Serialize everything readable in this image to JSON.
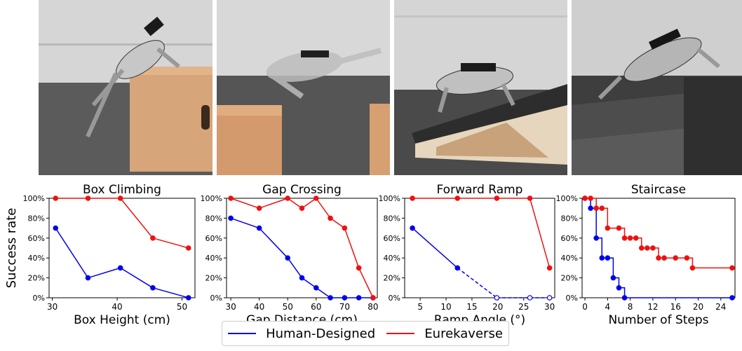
{
  "colors": {
    "human": "#0000ee",
    "eureka": "#ee1111"
  },
  "photos": [
    {
      "name": "box-climbing-photo",
      "scene": "quadruped robot climbing onto a wooden box"
    },
    {
      "name": "gap-crossing-photo",
      "scene": "quadruped robot leaping across a gap between two wooden boxes"
    },
    {
      "name": "forward-ramp-photo",
      "scene": "quadruped robot walking up an inclined wooden ramp"
    },
    {
      "name": "staircase-photo",
      "scene": "quadruped robot climbing a carpeted staircase"
    }
  ],
  "legend": {
    "human": "Human-Designed",
    "eureka": "Eurekaverse"
  },
  "ylabel": "Success rate",
  "chart_data": [
    {
      "type": "line",
      "title": "Box Climbing",
      "xlabel": "Box Height (cm)",
      "xlim": [
        29.5,
        52
      ],
      "ylim": [
        0,
        100
      ],
      "xticks": [
        30,
        40,
        50
      ],
      "yticks": [
        0,
        20,
        40,
        60,
        80,
        100
      ],
      "ytick_labels": [
        "0%",
        "20%",
        "40%",
        "60%",
        "80%",
        "100%"
      ],
      "series": [
        {
          "name": "Human-Designed",
          "key": "human",
          "x": [
            30.5,
            35.5,
            40.5,
            45.5,
            51
          ],
          "y": [
            70,
            20,
            30,
            10,
            0
          ]
        },
        {
          "name": "Eurekaverse",
          "key": "eureka",
          "x": [
            30.5,
            35.5,
            40.5,
            45.5,
            51
          ],
          "y": [
            100,
            100,
            100,
            60,
            50
          ]
        }
      ]
    },
    {
      "type": "line",
      "title": "Gap Crossing",
      "xlabel": "Gap Distance (cm)",
      "xlim": [
        28.5,
        81.5
      ],
      "ylim": [
        0,
        100
      ],
      "xticks": [
        30,
        40,
        50,
        60,
        70,
        80
      ],
      "yticks": [
        0,
        20,
        40,
        60,
        80,
        100
      ],
      "ytick_labels": [
        "0%",
        "20%",
        "40%",
        "60%",
        "80%",
        "100%"
      ],
      "series": [
        {
          "name": "Human-Designed",
          "key": "human",
          "x": [
            30,
            40,
            50,
            55,
            60,
            65,
            70,
            75,
            80
          ],
          "y": [
            80,
            70,
            40,
            20,
            10,
            0,
            0,
            0,
            0
          ]
        },
        {
          "name": "Eurekaverse",
          "key": "eureka",
          "x": [
            30,
            40,
            50,
            55,
            60,
            65,
            70,
            75,
            80
          ],
          "y": [
            100,
            90,
            100,
            90,
            100,
            80,
            70,
            30,
            0
          ]
        }
      ]
    },
    {
      "type": "line",
      "title": "Forward Ramp",
      "xlabel": "Ramp Angle (°)",
      "xlim": [
        2,
        31
      ],
      "ylim": [
        0,
        100
      ],
      "xticks": [
        5,
        10,
        15,
        20,
        25,
        30
      ],
      "yticks": [
        0,
        20,
        40,
        60,
        80,
        100
      ],
      "ytick_labels": [
        "0%",
        "20%",
        "40%",
        "60%",
        "80%",
        "100%"
      ],
      "series": [
        {
          "name": "Human-Designed",
          "key": "human",
          "x": [
            3.5,
            12.2,
            19.8,
            26.2,
            30
          ],
          "y": [
            70,
            30,
            0,
            0,
            0
          ],
          "dashed_from_index": 1,
          "open_from_index": 2
        },
        {
          "name": "Eurekaverse",
          "key": "eureka",
          "x": [
            3.5,
            12.2,
            19.8,
            26.2,
            30
          ],
          "y": [
            100,
            100,
            100,
            100,
            30
          ]
        }
      ]
    },
    {
      "type": "line",
      "title": "Staircase",
      "xlabel": "Number of Steps",
      "xlim": [
        -0.5,
        26.5
      ],
      "ylim": [
        0,
        100
      ],
      "xticks": [
        0,
        4,
        8,
        12,
        16,
        20,
        24
      ],
      "yticks": [
        0,
        20,
        40,
        60,
        80,
        100
      ],
      "ytick_labels": [
        "0%",
        "20%",
        "40%",
        "60%",
        "80%",
        "100%"
      ],
      "series": [
        {
          "name": "Human-Designed",
          "key": "human",
          "x": [
            0,
            1,
            2,
            3,
            4,
            5,
            6,
            7,
            26
          ],
          "y": [
            100,
            90,
            60,
            40,
            40,
            20,
            10,
            0,
            0
          ],
          "step": true
        },
        {
          "name": "Eurekaverse",
          "key": "eureka",
          "x": [
            0,
            1,
            2,
            3,
            4,
            6,
            7,
            8,
            9,
            10,
            11,
            12,
            13,
            14,
            16,
            18,
            19,
            26
          ],
          "y": [
            100,
            100,
            90,
            90,
            70,
            70,
            60,
            60,
            60,
            50,
            50,
            50,
            40,
            40,
            40,
            40,
            30,
            30
          ],
          "step": true
        }
      ]
    }
  ]
}
